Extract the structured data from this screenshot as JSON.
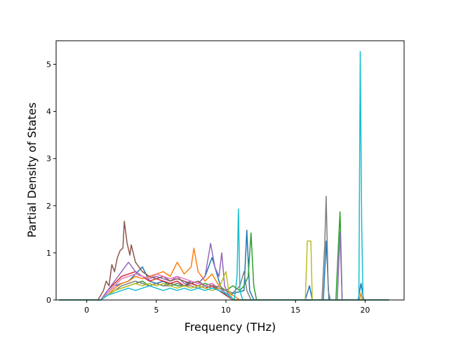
{
  "chart_data": {
    "type": "line",
    "title": "",
    "xlabel": "Frequency (THz)",
    "ylabel": "Partial Density of States",
    "xlim": [
      -2.2,
      22.8
    ],
    "ylim": [
      0,
      5.5
    ],
    "x_ticks": [
      0,
      5,
      10,
      15,
      20
    ],
    "y_ticks": [
      0,
      1,
      2,
      3,
      4,
      5
    ],
    "grid": false,
    "legend": "none",
    "series": [
      {
        "color": "#1f77b4",
        "points": [
          [
            -2,
            0
          ],
          [
            1,
            0
          ],
          [
            1.5,
            0.15
          ],
          [
            2,
            0.3
          ],
          [
            2.5,
            0.35
          ],
          [
            3,
            0.4
          ],
          [
            3.5,
            0.55
          ],
          [
            4,
            0.7
          ],
          [
            4.5,
            0.4
          ],
          [
            5,
            0.35
          ],
          [
            5.5,
            0.4
          ],
          [
            6,
            0.3
          ],
          [
            6.5,
            0.35
          ],
          [
            7,
            0.3
          ],
          [
            7.5,
            0.4
          ],
          [
            8,
            0.35
          ],
          [
            8.5,
            0.5
          ],
          [
            9,
            0.9
          ],
          [
            9.3,
            0.6
          ],
          [
            9.6,
            0.3
          ],
          [
            10,
            0.1
          ],
          [
            11.3,
            0.2
          ],
          [
            11.5,
            1.48
          ],
          [
            11.7,
            0.2
          ],
          [
            12,
            0
          ],
          [
            15.7,
            0
          ],
          [
            16,
            0.3
          ],
          [
            16.2,
            0
          ],
          [
            17,
            0
          ],
          [
            17.2,
            1.25
          ],
          [
            17.4,
            0
          ],
          [
            19.5,
            0
          ],
          [
            19.7,
            0.35
          ],
          [
            19.9,
            0
          ],
          [
            21.7,
            0
          ]
        ]
      },
      {
        "color": "#ff7f0e",
        "points": [
          [
            -2,
            0
          ],
          [
            1,
            0
          ],
          [
            1.5,
            0.1
          ],
          [
            2,
            0.25
          ],
          [
            2.5,
            0.35
          ],
          [
            3,
            0.4
          ],
          [
            3.5,
            0.5
          ],
          [
            4,
            0.45
          ],
          [
            4.5,
            0.5
          ],
          [
            5,
            0.55
          ],
          [
            5.5,
            0.6
          ],
          [
            6,
            0.5
          ],
          [
            6.5,
            0.8
          ],
          [
            7,
            0.55
          ],
          [
            7.5,
            0.7
          ],
          [
            7.7,
            1.1
          ],
          [
            8,
            0.6
          ],
          [
            8.5,
            0.4
          ],
          [
            9,
            0.55
          ],
          [
            9.5,
            0.3
          ],
          [
            10,
            0.2
          ],
          [
            10.5,
            0.1
          ],
          [
            11,
            0
          ],
          [
            19.6,
            0
          ],
          [
            19.7,
            0.15
          ],
          [
            19.8,
            0
          ],
          [
            21.7,
            0
          ]
        ]
      },
      {
        "color": "#2ca02c",
        "points": [
          [
            -2,
            0
          ],
          [
            1,
            0
          ],
          [
            1.5,
            0.1
          ],
          [
            2,
            0.2
          ],
          [
            2.5,
            0.25
          ],
          [
            3,
            0.3
          ],
          [
            3.5,
            0.35
          ],
          [
            4,
            0.4
          ],
          [
            4.5,
            0.3
          ],
          [
            5,
            0.35
          ],
          [
            5.5,
            0.3
          ],
          [
            6,
            0.35
          ],
          [
            6.5,
            0.3
          ],
          [
            7,
            0.3
          ],
          [
            7.5,
            0.35
          ],
          [
            8,
            0.3
          ],
          [
            8.5,
            0.35
          ],
          [
            9,
            0.3
          ],
          [
            9.5,
            0.25
          ],
          [
            10,
            0.2
          ],
          [
            10.5,
            0.3
          ],
          [
            11,
            0.2
          ],
          [
            11.3,
            0.3
          ],
          [
            11.6,
            0.5
          ],
          [
            11.8,
            1.42
          ],
          [
            12,
            0.3
          ],
          [
            12.2,
            0
          ],
          [
            17.9,
            0
          ],
          [
            18.1,
            1.3
          ],
          [
            18.2,
            1.87
          ],
          [
            18.35,
            0
          ],
          [
            21.7,
            0
          ]
        ]
      },
      {
        "color": "#d62728",
        "points": [
          [
            -2,
            0
          ],
          [
            1,
            0
          ],
          [
            1.5,
            0.2
          ],
          [
            2,
            0.35
          ],
          [
            2.5,
            0.5
          ],
          [
            3,
            0.55
          ],
          [
            3.5,
            0.6
          ],
          [
            4,
            0.5
          ],
          [
            4.5,
            0.4
          ],
          [
            5,
            0.45
          ],
          [
            5.5,
            0.4
          ],
          [
            6,
            0.35
          ],
          [
            6.5,
            0.4
          ],
          [
            7,
            0.3
          ],
          [
            7.5,
            0.35
          ],
          [
            8,
            0.3
          ],
          [
            8.5,
            0.25
          ],
          [
            9,
            0.3
          ],
          [
            9.5,
            0.2
          ],
          [
            10,
            0.1
          ],
          [
            10.5,
            0
          ],
          [
            21.7,
            0
          ]
        ]
      },
      {
        "color": "#9467bd",
        "points": [
          [
            -2,
            0
          ],
          [
            1,
            0
          ],
          [
            1.5,
            0.2
          ],
          [
            2,
            0.4
          ],
          [
            2.5,
            0.6
          ],
          [
            3,
            0.8
          ],
          [
            3.5,
            0.6
          ],
          [
            4,
            0.5
          ],
          [
            4.5,
            0.45
          ],
          [
            5,
            0.5
          ],
          [
            5.5,
            0.45
          ],
          [
            6,
            0.4
          ],
          [
            6.5,
            0.5
          ],
          [
            7,
            0.35
          ],
          [
            7.5,
            0.4
          ],
          [
            8,
            0.35
          ],
          [
            8.5,
            0.5
          ],
          [
            8.9,
            1.2
          ],
          [
            9.2,
            0.7
          ],
          [
            9.5,
            0.5
          ],
          [
            9.7,
            1
          ],
          [
            9.9,
            0.3
          ],
          [
            10.2,
            0.1
          ],
          [
            10.6,
            0
          ],
          [
            18,
            0
          ],
          [
            18.2,
            1.44
          ],
          [
            18.35,
            0
          ],
          [
            21.7,
            0
          ]
        ]
      },
      {
        "color": "#8c564b",
        "points": [
          [
            -2,
            0
          ],
          [
            0.8,
            0
          ],
          [
            1.2,
            0.2
          ],
          [
            1.4,
            0.4
          ],
          [
            1.6,
            0.3
          ],
          [
            1.8,
            0.75
          ],
          [
            2,
            0.6
          ],
          [
            2.2,
            0.9
          ],
          [
            2.4,
            1.05
          ],
          [
            2.6,
            1.1
          ],
          [
            2.7,
            1.67
          ],
          [
            2.9,
            1.2
          ],
          [
            3.1,
            0.95
          ],
          [
            3.2,
            1.17
          ],
          [
            3.5,
            0.8
          ],
          [
            4,
            0.6
          ],
          [
            4.5,
            0.5
          ],
          [
            5,
            0.45
          ],
          [
            5.5,
            0.5
          ],
          [
            6,
            0.4
          ],
          [
            6.5,
            0.45
          ],
          [
            7,
            0.4
          ],
          [
            7.5,
            0.35
          ],
          [
            8,
            0.4
          ],
          [
            8.5,
            0.3
          ],
          [
            9,
            0.35
          ],
          [
            9.5,
            0.2
          ],
          [
            10,
            0.1
          ],
          [
            10.5,
            0
          ],
          [
            21.7,
            0
          ]
        ]
      },
      {
        "color": "#e377c2",
        "points": [
          [
            -2,
            0
          ],
          [
            1,
            0
          ],
          [
            1.5,
            0.15
          ],
          [
            2,
            0.3
          ],
          [
            2.5,
            0.45
          ],
          [
            3,
            0.5
          ],
          [
            3.5,
            0.55
          ],
          [
            4,
            0.5
          ],
          [
            4.5,
            0.45
          ],
          [
            5,
            0.55
          ],
          [
            5.5,
            0.5
          ],
          [
            6,
            0.45
          ],
          [
            6.5,
            0.5
          ],
          [
            7,
            0.45
          ],
          [
            7.5,
            0.4
          ],
          [
            8,
            0.35
          ],
          [
            8.5,
            0.3
          ],
          [
            9,
            0.35
          ],
          [
            9.5,
            0.25
          ],
          [
            10,
            0.15
          ],
          [
            10.5,
            0
          ],
          [
            21.7,
            0
          ]
        ]
      },
      {
        "color": "#7f7f7f",
        "points": [
          [
            -2,
            0
          ],
          [
            1,
            0
          ],
          [
            1.5,
            0.1
          ],
          [
            2,
            0.2
          ],
          [
            2.5,
            0.3
          ],
          [
            3,
            0.35
          ],
          [
            3.5,
            0.4
          ],
          [
            4,
            0.35
          ],
          [
            4.5,
            0.3
          ],
          [
            5,
            0.35
          ],
          [
            5.5,
            0.3
          ],
          [
            6,
            0.3
          ],
          [
            6.5,
            0.35
          ],
          [
            7,
            0.3
          ],
          [
            7.5,
            0.3
          ],
          [
            8,
            0.25
          ],
          [
            8.5,
            0.3
          ],
          [
            9,
            0.25
          ],
          [
            9.5,
            0.3
          ],
          [
            10,
            0.2
          ],
          [
            10.5,
            0.15
          ],
          [
            11,
            0.3
          ],
          [
            11.3,
            0.6
          ],
          [
            11.5,
            0.2
          ],
          [
            11.8,
            0
          ],
          [
            16.9,
            0
          ],
          [
            17.1,
            1.2
          ],
          [
            17.2,
            2.2
          ],
          [
            17.35,
            0.2
          ],
          [
            17.5,
            0
          ],
          [
            21.7,
            0
          ]
        ]
      },
      {
        "color": "#bcbd22",
        "points": [
          [
            -2,
            0
          ],
          [
            1,
            0
          ],
          [
            1.5,
            0.1
          ],
          [
            2,
            0.2
          ],
          [
            2.5,
            0.25
          ],
          [
            3,
            0.3
          ],
          [
            3.5,
            0.35
          ],
          [
            4,
            0.3
          ],
          [
            4.5,
            0.35
          ],
          [
            5,
            0.3
          ],
          [
            5.5,
            0.35
          ],
          [
            6,
            0.3
          ],
          [
            6.5,
            0.25
          ],
          [
            7,
            0.3
          ],
          [
            7.5,
            0.25
          ],
          [
            8,
            0.3
          ],
          [
            8.5,
            0.25
          ],
          [
            9,
            0.2
          ],
          [
            9.5,
            0.25
          ],
          [
            10,
            0.6
          ],
          [
            10.2,
            0.2
          ],
          [
            10.5,
            0
          ],
          [
            15.7,
            0
          ],
          [
            15.85,
            1.25
          ],
          [
            16.1,
            1.25
          ],
          [
            16.2,
            0
          ],
          [
            21.7,
            0
          ]
        ]
      },
      {
        "color": "#17becf",
        "points": [
          [
            -2,
            0
          ],
          [
            1,
            0
          ],
          [
            1.5,
            0.1
          ],
          [
            2,
            0.15
          ],
          [
            2.5,
            0.2
          ],
          [
            3,
            0.25
          ],
          [
            3.5,
            0.2
          ],
          [
            4,
            0.25
          ],
          [
            4.5,
            0.3
          ],
          [
            5,
            0.25
          ],
          [
            5.5,
            0.2
          ],
          [
            6,
            0.25
          ],
          [
            6.5,
            0.2
          ],
          [
            7,
            0.25
          ],
          [
            7.5,
            0.2
          ],
          [
            8,
            0.25
          ],
          [
            8.5,
            0.2
          ],
          [
            9,
            0.25
          ],
          [
            9.5,
            0.2
          ],
          [
            10,
            0.15
          ],
          [
            10.6,
            0
          ],
          [
            10.8,
            0.5
          ],
          [
            10.9,
            1.93
          ],
          [
            11,
            0.2
          ],
          [
            11.2,
            0
          ],
          [
            19.55,
            0
          ],
          [
            19.65,
            5.27
          ],
          [
            19.75,
            1.66
          ],
          [
            19.85,
            0
          ],
          [
            21.7,
            0
          ]
        ]
      }
    ]
  }
}
